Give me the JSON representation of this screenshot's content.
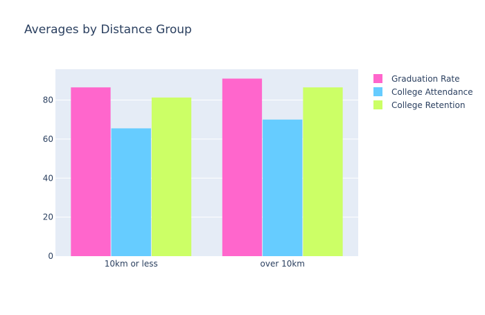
{
  "chart_data": {
    "type": "bar",
    "title": "Averages by Distance Group",
    "xlabel": "",
    "ylabel": "",
    "categories": [
      "10km or less",
      "over 10km"
    ],
    "series": [
      {
        "name": "Graduation Rate",
        "values": [
          86.5,
          91.0
        ],
        "color": "#ff66cc"
      },
      {
        "name": "College Attendance",
        "values": [
          65.5,
          70.0
        ],
        "color": "#66ccff"
      },
      {
        "name": "College Retention",
        "values": [
          81.3,
          86.5
        ],
        "color": "#ccff66"
      }
    ],
    "ylim": [
      0,
      95.8
    ],
    "yticks": [
      0,
      20,
      40,
      60,
      80
    ],
    "grid": true,
    "legend_position": "top-right",
    "plot_background": "#e5ecf6"
  }
}
